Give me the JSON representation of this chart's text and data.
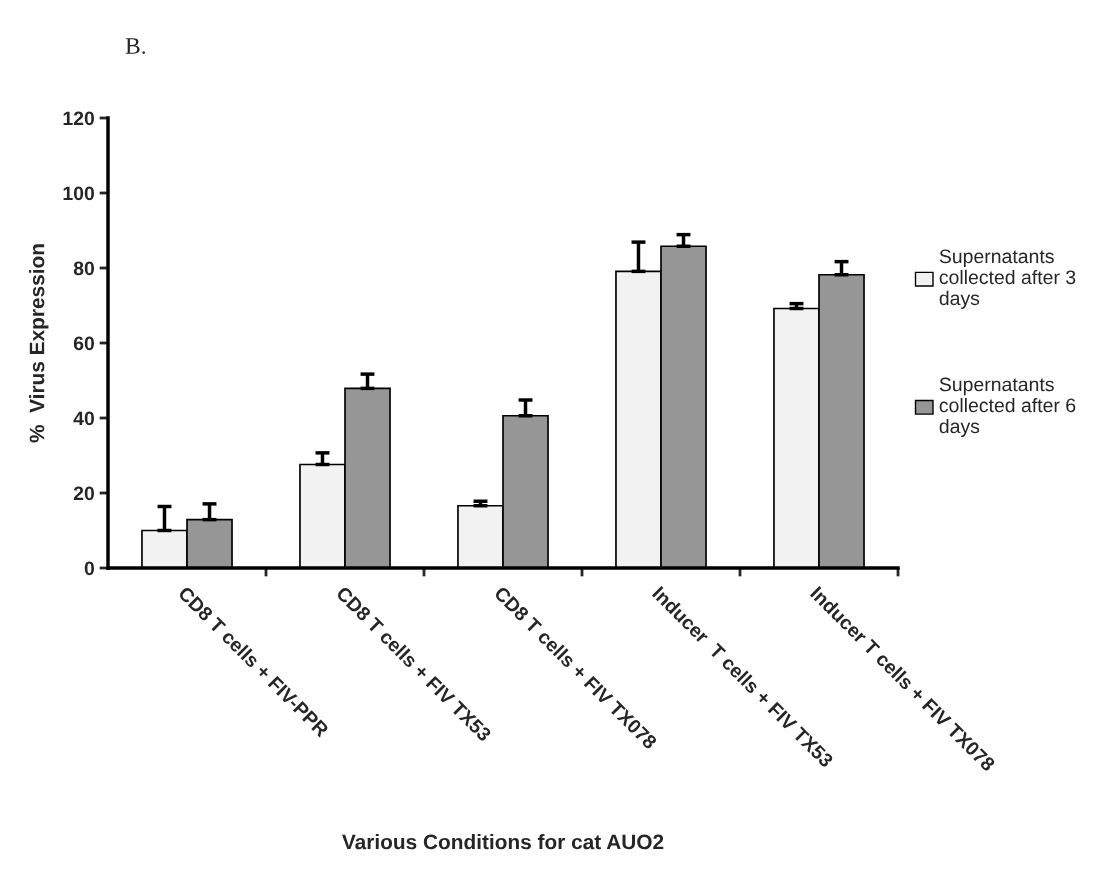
{
  "chart_data": {
    "type": "bar",
    "categories": [
      "CD8 T cells + FIV-PPR",
      "CD8 T cells + FIV TX53",
      "CD8 T cells + FIV TX078",
      "Inducer  T cells + FIV TX53",
      "Inducer T cells + FIV TX078"
    ],
    "series": [
      {
        "name": "Supernatants collected after 3 days",
        "color": "#f2f2f2",
        "values": [
          10,
          27.6,
          16.6,
          79.1,
          69.2
        ],
        "errors": [
          [
            10,
            16.4
          ],
          [
            27.6,
            30.7
          ],
          [
            16.6,
            17.8
          ],
          [
            79.1,
            86.9
          ],
          [
            69.2,
            70.5
          ]
        ]
      },
      {
        "name": "Supernatants collected after 6 days",
        "color": "#969696",
        "values": [
          12.9,
          47.9,
          40.6,
          85.8,
          78.2
        ],
        "errors": [
          [
            12.9,
            17.1
          ],
          [
            47.9,
            51.7
          ],
          [
            40.6,
            44.8
          ],
          [
            85.8,
            88.9
          ],
          [
            78.2,
            81.7
          ]
        ]
      }
    ],
    "ylabel": "%  Virus Expression",
    "xlabel": "Various Conditions for cat AUO2",
    "ylim": [
      0,
      120
    ],
    "yticks": [
      0,
      20,
      40,
      60,
      80,
      100,
      120
    ],
    "grid": false,
    "legend": "right",
    "annotations": [
      "B."
    ]
  }
}
